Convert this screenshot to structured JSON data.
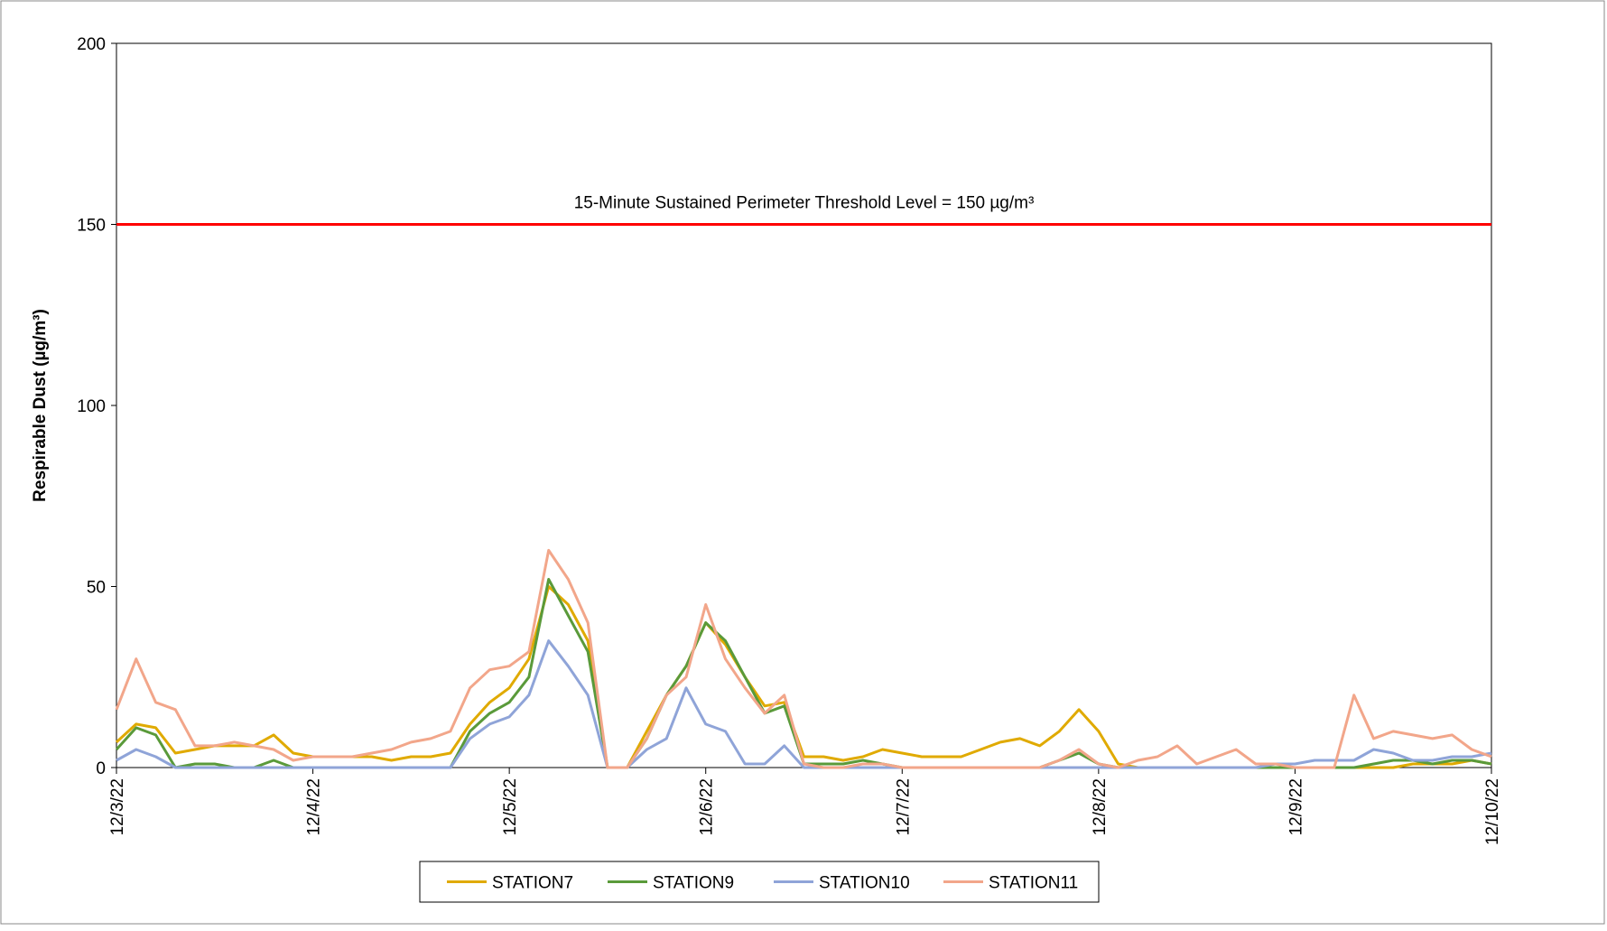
{
  "chart_data": {
    "type": "line",
    "threshold": {
      "value": 150,
      "label": "15-Minute Sustained Perimeter Threshold Level = 150 µg/m³",
      "color": "#ff0000"
    },
    "y_label": "Respirable Dust (µg/m³)",
    "x": [
      0,
      0.1,
      0.2,
      0.3,
      0.4,
      0.5,
      0.6,
      0.7,
      0.8,
      0.9,
      1,
      1.1,
      1.2,
      1.3,
      1.4,
      1.5,
      1.6,
      1.7,
      1.8,
      1.9,
      2,
      2.1,
      2.2,
      2.3,
      2.4,
      2.5,
      2.6,
      2.7,
      2.8,
      2.9,
      3,
      3.1,
      3.2,
      3.3,
      3.4,
      3.5,
      3.6,
      3.7,
      3.8,
      3.9,
      4,
      4.1,
      4.2,
      4.3,
      4.4,
      4.5,
      4.6,
      4.7,
      4.8,
      4.9,
      5,
      5.1,
      5.2,
      5.3,
      5.4,
      5.5,
      5.6,
      5.7,
      5.8,
      5.9,
      6,
      6.1,
      6.2,
      6.3,
      6.4,
      6.5,
      6.6,
      6.7,
      6.8,
      6.9,
      7
    ],
    "series": [
      {
        "name": "STATION7",
        "color": "#e0aa00",
        "values": [
          7,
          12,
          11,
          4,
          5,
          6,
          6,
          6,
          9,
          4,
          3,
          3,
          3,
          3,
          2,
          3,
          3,
          4,
          12,
          18,
          22,
          30,
          50,
          45,
          35,
          0,
          0,
          10,
          20,
          28,
          40,
          34,
          25,
          17,
          18,
          3,
          3,
          2,
          3,
          5,
          4,
          3,
          3,
          3,
          5,
          7,
          8,
          6,
          10,
          16,
          10,
          1,
          0,
          0,
          0,
          0,
          0,
          0,
          0,
          0,
          0,
          0,
          0,
          0,
          0,
          0,
          1,
          1,
          1,
          2,
          1
        ]
      },
      {
        "name": "STATION9",
        "color": "#5a9a3a",
        "values": [
          5,
          11,
          9,
          0,
          1,
          1,
          0,
          0,
          2,
          0,
          0,
          0,
          0,
          0,
          0,
          0,
          0,
          0,
          10,
          15,
          18,
          25,
          52,
          42,
          32,
          0,
          0,
          8,
          20,
          28,
          40,
          35,
          25,
          15,
          17,
          1,
          1,
          1,
          2,
          1,
          0,
          0,
          0,
          0,
          0,
          0,
          0,
          0,
          2,
          4,
          1,
          0,
          0,
          0,
          0,
          0,
          0,
          0,
          0,
          0,
          0,
          0,
          0,
          0,
          1,
          2,
          2,
          1,
          2,
          2,
          1
        ]
      },
      {
        "name": "STATION10",
        "color": "#8fa4d8",
        "values": [
          2,
          5,
          3,
          0,
          0,
          0,
          0,
          0,
          0,
          0,
          0,
          0,
          0,
          0,
          0,
          0,
          0,
          0,
          8,
          12,
          14,
          20,
          35,
          28,
          20,
          0,
          0,
          5,
          8,
          22,
          12,
          10,
          1,
          1,
          6,
          0,
          0,
          0,
          0,
          0,
          0,
          0,
          0,
          0,
          0,
          0,
          0,
          0,
          0,
          0,
          0,
          0,
          0,
          0,
          0,
          0,
          0,
          0,
          0,
          1,
          1,
          2,
          2,
          2,
          5,
          4,
          2,
          2,
          3,
          3,
          4
        ]
      },
      {
        "name": "STATION11",
        "color": "#f2a68a",
        "values": [
          16,
          30,
          18,
          16,
          6,
          6,
          7,
          6,
          5,
          2,
          3,
          3,
          3,
          4,
          5,
          7,
          8,
          10,
          22,
          27,
          28,
          32,
          60,
          52,
          40,
          0,
          0,
          8,
          20,
          25,
          45,
          30,
          22,
          15,
          20,
          1,
          0,
          0,
          1,
          1,
          0,
          0,
          0,
          0,
          0,
          0,
          0,
          0,
          2,
          5,
          1,
          0,
          2,
          3,
          6,
          1,
          3,
          5,
          1,
          1,
          0,
          0,
          0,
          20,
          8,
          10,
          9,
          8,
          9,
          5,
          3
        ]
      }
    ],
    "xlim": [
      0,
      7
    ],
    "xticks": [
      {
        "value": 0,
        "label": "12/3/22"
      },
      {
        "value": 1,
        "label": "12/4/22"
      },
      {
        "value": 2,
        "label": "12/5/22"
      },
      {
        "value": 3,
        "label": "12/6/22"
      },
      {
        "value": 4,
        "label": "12/7/22"
      },
      {
        "value": 5,
        "label": "12/8/22"
      },
      {
        "value": 6,
        "label": "12/9/22"
      },
      {
        "value": 7,
        "label": "12/10/22"
      }
    ],
    "ylim": [
      0,
      200
    ],
    "yticks": [
      0,
      50,
      100,
      150,
      200
    ],
    "legend": "bottom"
  }
}
